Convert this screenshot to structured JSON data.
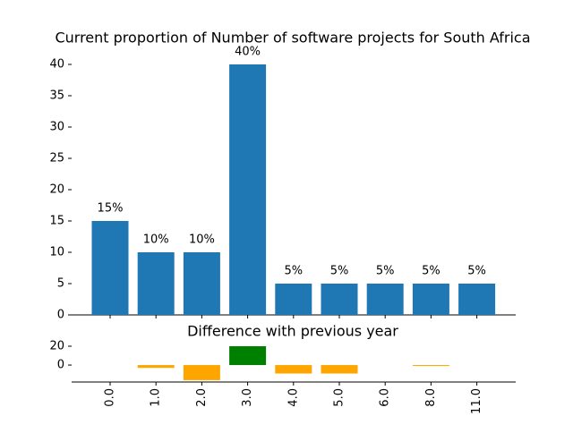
{
  "chart_data": [
    {
      "type": "bar",
      "title": "Current proportion of Number of software projects for South Africa",
      "values": [
        15,
        10,
        10,
        40,
        5,
        5,
        5,
        5,
        5
      ],
      "value_labels": [
        "15%",
        "10%",
        "10%",
        "40%",
        "5%",
        "5%",
        "5%",
        "5%",
        "5%"
      ],
      "color": "#1f77b4",
      "ylim": [
        0,
        42
      ],
      "yticks": [
        0,
        5,
        10,
        15,
        20,
        25,
        30,
        35,
        40
      ]
    },
    {
      "type": "bar",
      "title": "Difference with previous year",
      "categories": [
        "0.0",
        "1.0",
        "2.0",
        "3.0",
        "4.0",
        "5.0",
        "6.0",
        "8.0",
        "11.0"
      ],
      "values": [
        0,
        -3,
        -16,
        20,
        -9,
        -9,
        0,
        -1,
        0
      ],
      "colors": [
        "#ffa500",
        "#ffa500",
        "#ffa500",
        "#008000",
        "#ffa500",
        "#ffa500",
        "#ffa500",
        "#ffa500",
        "#ffa500"
      ],
      "ylim": [
        -18,
        20
      ],
      "yticks": [
        0,
        20
      ]
    }
  ]
}
